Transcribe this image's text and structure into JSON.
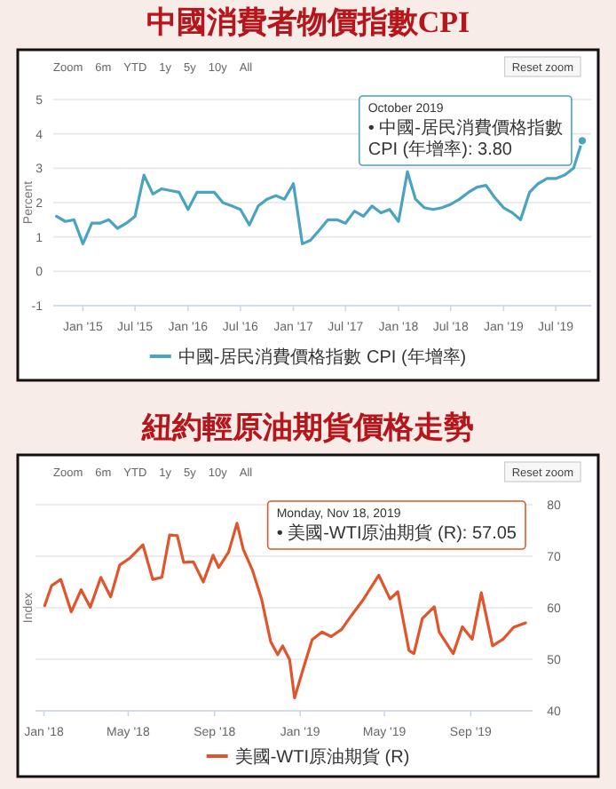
{
  "chart_data": [
    {
      "type": "line",
      "title": "中國消費者物價指數CPI",
      "ylabel": "Percent",
      "legend": "bottom",
      "grid": "y",
      "xlim": [
        "2014-09-20",
        "2019-11-01"
      ],
      "ylim": [
        -1,
        5
      ],
      "yticks": [
        -1,
        0,
        1,
        2,
        3,
        4,
        5
      ],
      "xticks": [
        {
          "value": "2015-01",
          "label": "Jan '15"
        },
        {
          "value": "2015-07",
          "label": "Jul '15"
        },
        {
          "value": "2016-01",
          "label": "Jan '16"
        },
        {
          "value": "2016-07",
          "label": "Jul '16"
        },
        {
          "value": "2017-01",
          "label": "Jan '17"
        },
        {
          "value": "2017-07",
          "label": "Jul '17"
        },
        {
          "value": "2018-01",
          "label": "Jan '18"
        },
        {
          "value": "2018-07",
          "label": "Jul '18"
        },
        {
          "value": "2019-01",
          "label": "Jan '19"
        },
        {
          "value": "2019-07",
          "label": "Jul '19"
        }
      ],
      "x": [
        "2014-10",
        "2014-11",
        "2014-12",
        "2015-01",
        "2015-02",
        "2015-03",
        "2015-04",
        "2015-05",
        "2015-06",
        "2015-07",
        "2015-08",
        "2015-09",
        "2015-10",
        "2015-11",
        "2015-12",
        "2016-01",
        "2016-02",
        "2016-03",
        "2016-04",
        "2016-05",
        "2016-06",
        "2016-07",
        "2016-08",
        "2016-09",
        "2016-10",
        "2016-11",
        "2016-12",
        "2017-01",
        "2017-02",
        "2017-03",
        "2017-04",
        "2017-05",
        "2017-06",
        "2017-07",
        "2017-08",
        "2017-09",
        "2017-10",
        "2017-11",
        "2017-12",
        "2018-01",
        "2018-02",
        "2018-03",
        "2018-04",
        "2018-05",
        "2018-06",
        "2018-07",
        "2018-08",
        "2018-09",
        "2018-10",
        "2018-11",
        "2018-12",
        "2019-01",
        "2019-02",
        "2019-03",
        "2019-04",
        "2019-05",
        "2019-06",
        "2019-07",
        "2019-08",
        "2019-09",
        "2019-10"
      ],
      "series": [
        {
          "name": "中國-居民消費價格指數 CPI (年增率)",
          "color": "#4aa3bf",
          "values": [
            1.6,
            1.45,
            1.5,
            0.8,
            1.4,
            1.4,
            1.5,
            1.25,
            1.4,
            1.6,
            2.8,
            2.25,
            2.4,
            2.35,
            2.3,
            1.8,
            2.3,
            2.3,
            2.3,
            2.0,
            1.9,
            1.8,
            1.35,
            1.9,
            2.1,
            2.2,
            2.1,
            2.55,
            0.8,
            0.9,
            1.2,
            1.5,
            1.5,
            1.4,
            1.75,
            1.6,
            1.9,
            1.7,
            1.8,
            1.45,
            2.9,
            2.1,
            1.85,
            1.8,
            1.85,
            1.95,
            2.1,
            2.3,
            2.45,
            2.5,
            2.15,
            1.85,
            1.7,
            1.5,
            2.3,
            2.55,
            2.7,
            2.7,
            2.8,
            3.0,
            3.8
          ]
        }
      ],
      "annotations": [
        "Zoom",
        "6m",
        "YTD",
        "1y",
        "5y",
        "10y",
        "All",
        "Reset zoom",
        {
          "text": "October 2019\n• 中國-居民消費價格指數\nCPI (年增率): 3.80",
          "x": "2019-10",
          "y": 3.8
        }
      ]
    },
    {
      "type": "line",
      "title": "紐約輕原油期貨價格走勢",
      "ylabel": "Index",
      "legend": "bottom",
      "grid": "y",
      "xlim": [
        "2017-12-20",
        "2019-11-28"
      ],
      "y2lim": [
        40,
        80
      ],
      "y2ticks": [
        40,
        50,
        60,
        70,
        80
      ],
      "xticks": [
        {
          "value": "2018-01-01",
          "label": "Jan '18"
        },
        {
          "value": "2018-05-01",
          "label": "May '18"
        },
        {
          "value": "2018-09-01",
          "label": "Sep '18"
        },
        {
          "value": "2019-01-01",
          "label": "Jan '19"
        },
        {
          "value": "2019-05-01",
          "label": "May '19"
        },
        {
          "value": "2019-09-01",
          "label": "Sep '19"
        }
      ],
      "x": [
        "2018-01-02",
        "2018-01-12",
        "2018-01-25",
        "2018-02-09",
        "2018-02-23",
        "2018-03-08",
        "2018-03-23",
        "2018-04-06",
        "2018-04-19",
        "2018-05-04",
        "2018-05-22",
        "2018-06-05",
        "2018-06-18",
        "2018-06-29",
        "2018-07-10",
        "2018-07-19",
        "2018-08-02",
        "2018-08-16",
        "2018-08-30",
        "2018-09-07",
        "2018-09-21",
        "2018-10-03",
        "2018-10-12",
        "2018-10-25",
        "2018-11-07",
        "2018-11-20",
        "2018-11-30",
        "2018-12-07",
        "2018-12-17",
        "2018-12-24",
        "2019-01-03",
        "2019-01-18",
        "2019-02-01",
        "2019-02-14",
        "2019-03-01",
        "2019-03-15",
        "2019-04-01",
        "2019-04-23",
        "2019-05-09",
        "2019-05-20",
        "2019-06-05",
        "2019-06-12",
        "2019-06-24",
        "2019-07-11",
        "2019-07-18",
        "2019-08-07",
        "2019-08-20",
        "2019-09-03",
        "2019-09-16",
        "2019-10-02",
        "2019-10-17",
        "2019-11-01",
        "2019-11-18"
      ],
      "series": [
        {
          "name": "美國-WTI原油期貨 (R)",
          "color": "#e0552b",
          "axis": "y2",
          "values": [
            60.4,
            64.3,
            65.5,
            59.2,
            63.5,
            60.1,
            65.9,
            62.1,
            68.3,
            69.7,
            72.2,
            65.5,
            65.9,
            74.1,
            74.0,
            68.8,
            68.9,
            65.0,
            70.2,
            67.8,
            70.8,
            76.4,
            71.3,
            67.3,
            61.7,
            53.4,
            50.9,
            52.6,
            49.9,
            42.5,
            47.1,
            53.8,
            55.3,
            54.4,
            55.8,
            58.5,
            61.6,
            66.3,
            61.7,
            63.1,
            51.7,
            51.1,
            57.9,
            60.2,
            55.3,
            51.1,
            56.3,
            53.9,
            62.9,
            52.6,
            53.9,
            56.2,
            57.05
          ]
        }
      ],
      "annotations": [
        "Zoom",
        "6m",
        "YTD",
        "1y",
        "5y",
        "10y",
        "All",
        "Reset zoom",
        "Monday, Nov 18, 2019\n• 美國-WTI原油期貨 (R): 57.05"
      ]
    }
  ]
}
